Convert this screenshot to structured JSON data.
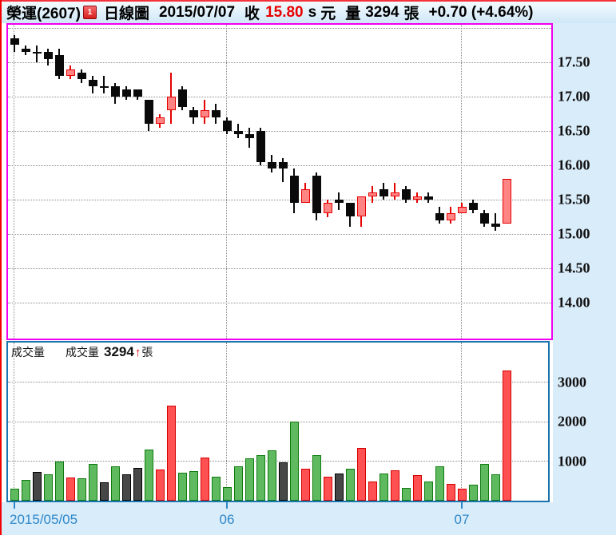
{
  "header": {
    "title": "榮運(2607)",
    "badge": "1",
    "chart_type": "日線圖",
    "date": "2015/07/07",
    "close_label": "收",
    "close_value": "15.80",
    "close_suffix": "s",
    "close_unit": "元",
    "volume_label": "量",
    "volume_value": "3294",
    "volume_unit": "張",
    "change_text": "+0.70 (+4.64%)"
  },
  "volume_legend": {
    "panel_label": "成交量",
    "label": "成交量",
    "value": "3294",
    "arrow": "↑",
    "unit": "張"
  },
  "price_axis": {
    "tick_labels": [
      "17.50",
      "17.00",
      "16.50",
      "16.00",
      "15.50",
      "15.00",
      "14.50",
      "14.00"
    ]
  },
  "volume_axis": {
    "tick_labels": [
      "3000",
      "2000",
      "1000"
    ]
  },
  "x_axis": {
    "labels": [
      "2015/05/05",
      "06",
      "07"
    ],
    "label_positions": [
      0,
      19,
      40
    ]
  },
  "colors": {
    "candle_up_border": "#e60000",
    "candle_up_fill": "#ff8585",
    "candle_down": "#0a0a0a",
    "vol_up_fill": "#ff5151",
    "vol_up_border": "#d40000",
    "vol_down_fill": "#5fba5f",
    "vol_down_border": "#0f7a0f",
    "vol_flat_fill": "#474747",
    "vol_flat_border": "#000000",
    "axis_blue": "#2d87c8",
    "price_border": "#f000f0",
    "volume_border": "#1a74ad",
    "grid": "#8c8c8c"
  },
  "chart_data": {
    "type": "candlestick",
    "title": "榮運(2607) 日線圖 2015/07/07",
    "price_ticks": [
      17.5,
      17.0,
      16.5,
      16.0,
      15.5,
      15.0,
      14.5,
      14.0
    ],
    "price_grid_extra": 18.0,
    "volume_ticks": [
      3000,
      2000,
      1000
    ],
    "x_tick_labels": [
      "2015/05/05",
      "06",
      "07"
    ],
    "x_tick_candle_index": [
      0,
      19,
      40
    ],
    "candles": [
      {
        "o": 17.85,
        "h": 17.9,
        "l": 17.65,
        "c": 17.75,
        "v": 300,
        "chg": "down"
      },
      {
        "o": 17.7,
        "h": 17.75,
        "l": 17.6,
        "c": 17.65,
        "v": 530,
        "chg": "down"
      },
      {
        "o": 17.65,
        "h": 17.75,
        "l": 17.5,
        "c": 17.65,
        "v": 730,
        "chg": "flat"
      },
      {
        "o": 17.65,
        "h": 17.7,
        "l": 17.45,
        "c": 17.55,
        "v": 670,
        "chg": "down"
      },
      {
        "o": 17.6,
        "h": 17.7,
        "l": 17.25,
        "c": 17.3,
        "v": 1000,
        "chg": "down"
      },
      {
        "o": 17.3,
        "h": 17.45,
        "l": 17.25,
        "c": 17.4,
        "v": 590,
        "chg": "up"
      },
      {
        "o": 17.35,
        "h": 17.4,
        "l": 17.2,
        "c": 17.25,
        "v": 565,
        "chg": "down"
      },
      {
        "o": 17.25,
        "h": 17.3,
        "l": 17.05,
        "c": 17.15,
        "v": 930,
        "chg": "down"
      },
      {
        "o": 17.15,
        "h": 17.3,
        "l": 17.05,
        "c": 17.15,
        "v": 460,
        "chg": "flat"
      },
      {
        "o": 17.15,
        "h": 17.2,
        "l": 16.9,
        "c": 17.0,
        "v": 860,
        "chg": "down"
      },
      {
        "o": 17.1,
        "h": 17.15,
        "l": 16.95,
        "c": 17.0,
        "v": 660,
        "chg": "flat"
      },
      {
        "o": 17.1,
        "h": 17.1,
        "l": 16.95,
        "c": 17.0,
        "v": 830,
        "chg": "flat"
      },
      {
        "o": 16.95,
        "h": 16.95,
        "l": 16.5,
        "c": 16.6,
        "v": 1300,
        "chg": "down"
      },
      {
        "o": 16.6,
        "h": 16.75,
        "l": 16.55,
        "c": 16.7,
        "v": 780,
        "chg": "up"
      },
      {
        "o": 16.8,
        "h": 17.35,
        "l": 16.6,
        "c": 17.0,
        "v": 2400,
        "chg": "up"
      },
      {
        "o": 17.1,
        "h": 17.15,
        "l": 16.8,
        "c": 16.85,
        "v": 715,
        "chg": "down"
      },
      {
        "o": 16.8,
        "h": 16.85,
        "l": 16.6,
        "c": 16.7,
        "v": 745,
        "chg": "down"
      },
      {
        "o": 16.7,
        "h": 16.95,
        "l": 16.6,
        "c": 16.8,
        "v": 1100,
        "chg": "up"
      },
      {
        "o": 16.8,
        "h": 16.9,
        "l": 16.6,
        "c": 16.7,
        "v": 610,
        "chg": "down"
      },
      {
        "o": 16.65,
        "h": 16.7,
        "l": 16.45,
        "c": 16.5,
        "v": 350,
        "chg": "down"
      },
      {
        "o": 16.5,
        "h": 16.6,
        "l": 16.4,
        "c": 16.45,
        "v": 870,
        "chg": "down"
      },
      {
        "o": 16.45,
        "h": 16.55,
        "l": 16.25,
        "c": 16.4,
        "v": 1070,
        "chg": "down"
      },
      {
        "o": 16.5,
        "h": 16.55,
        "l": 16.0,
        "c": 16.05,
        "v": 1150,
        "chg": "down"
      },
      {
        "o": 16.05,
        "h": 16.15,
        "l": 15.9,
        "c": 15.95,
        "v": 1270,
        "chg": "down"
      },
      {
        "o": 16.05,
        "h": 16.1,
        "l": 15.75,
        "c": 15.95,
        "v": 970,
        "chg": "flat"
      },
      {
        "o": 15.85,
        "h": 15.95,
        "l": 15.3,
        "c": 15.45,
        "v": 2000,
        "chg": "down"
      },
      {
        "o": 15.45,
        "h": 15.75,
        "l": 15.45,
        "c": 15.65,
        "v": 810,
        "chg": "up"
      },
      {
        "o": 15.85,
        "h": 15.9,
        "l": 15.2,
        "c": 15.3,
        "v": 1150,
        "chg": "down"
      },
      {
        "o": 15.3,
        "h": 15.5,
        "l": 15.25,
        "c": 15.45,
        "v": 610,
        "chg": "up"
      },
      {
        "o": 15.5,
        "h": 15.6,
        "l": 15.35,
        "c": 15.45,
        "v": 680,
        "chg": "flat"
      },
      {
        "o": 15.45,
        "h": 15.45,
        "l": 15.1,
        "c": 15.25,
        "v": 810,
        "chg": "down"
      },
      {
        "o": 15.25,
        "h": 15.55,
        "l": 15.1,
        "c": 15.55,
        "v": 1330,
        "chg": "up"
      },
      {
        "o": 15.55,
        "h": 15.7,
        "l": 15.45,
        "c": 15.6,
        "v": 485,
        "chg": "up"
      },
      {
        "o": 15.65,
        "h": 15.75,
        "l": 15.5,
        "c": 15.55,
        "v": 690,
        "chg": "down"
      },
      {
        "o": 15.55,
        "h": 15.75,
        "l": 15.5,
        "c": 15.6,
        "v": 770,
        "chg": "up"
      },
      {
        "o": 15.65,
        "h": 15.7,
        "l": 15.45,
        "c": 15.5,
        "v": 315,
        "chg": "down"
      },
      {
        "o": 15.5,
        "h": 15.6,
        "l": 15.45,
        "c": 15.55,
        "v": 650,
        "chg": "up"
      },
      {
        "o": 15.55,
        "h": 15.6,
        "l": 15.45,
        "c": 15.5,
        "v": 485,
        "chg": "down"
      },
      {
        "o": 15.3,
        "h": 15.4,
        "l": 15.15,
        "c": 15.2,
        "v": 870,
        "chg": "down"
      },
      {
        "o": 15.2,
        "h": 15.4,
        "l": 15.15,
        "c": 15.3,
        "v": 430,
        "chg": "up"
      },
      {
        "o": 15.3,
        "h": 15.45,
        "l": 15.3,
        "c": 15.4,
        "v": 300,
        "chg": "up"
      },
      {
        "o": 15.45,
        "h": 15.5,
        "l": 15.3,
        "c": 15.35,
        "v": 400,
        "chg": "down"
      },
      {
        "o": 15.3,
        "h": 15.35,
        "l": 15.1,
        "c": 15.15,
        "v": 930,
        "chg": "down"
      },
      {
        "o": 15.15,
        "h": 15.3,
        "l": 15.05,
        "c": 15.1,
        "v": 665,
        "chg": "down"
      },
      {
        "o": 15.15,
        "h": 15.8,
        "l": 15.15,
        "c": 15.8,
        "v": 3294,
        "chg": "up"
      }
    ]
  }
}
